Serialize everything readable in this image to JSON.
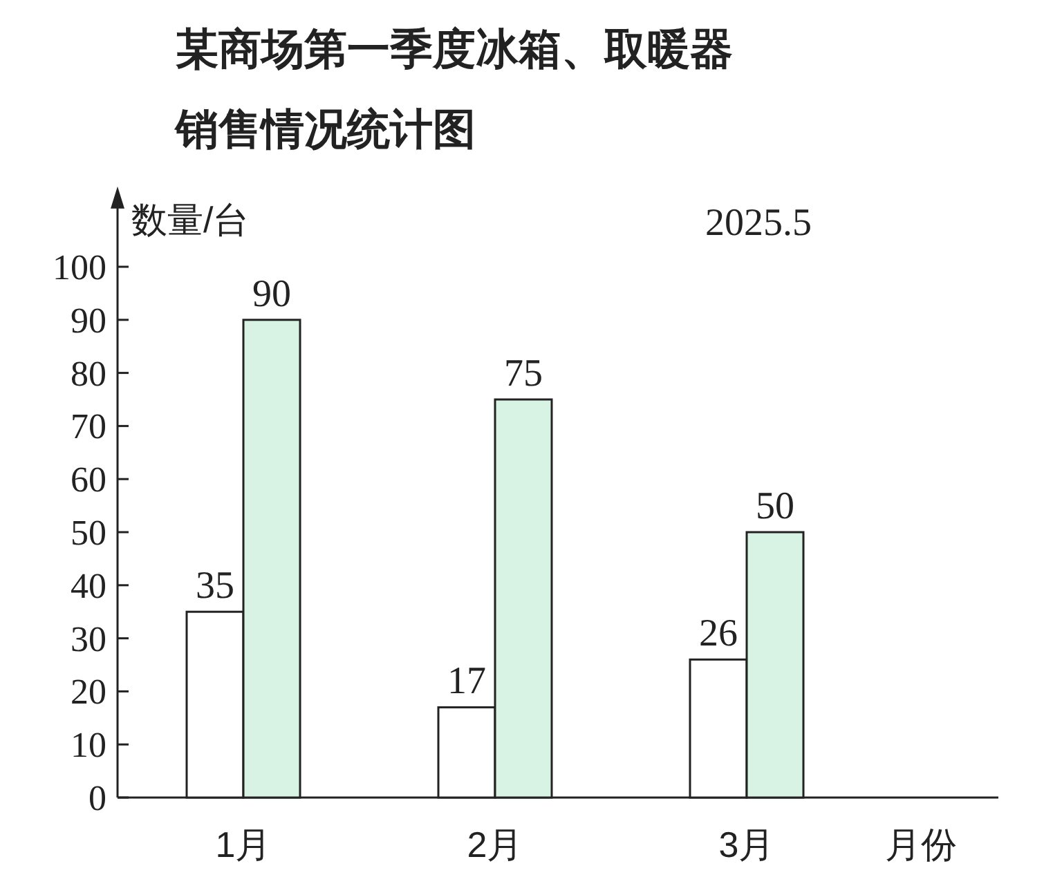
{
  "chart_data": {
    "type": "bar",
    "title": "某商场第一季度冰箱、取暖器销售情况统计图",
    "xlabel": "月份",
    "ylabel": "数量/台",
    "annotations": [
      "2025.5"
    ],
    "categories": [
      "1月",
      "2月",
      "3月"
    ],
    "series": [
      {
        "color": "#ffffff",
        "values": [
          35,
          17,
          26
        ]
      },
      {
        "color": "#d8f3e4",
        "values": [
          90,
          75,
          50
        ]
      }
    ],
    "ylim": [
      0,
      112
    ],
    "yticks": [
      0,
      10,
      20,
      30,
      40,
      50,
      60,
      70,
      80,
      90,
      100
    ],
    "data_labels": true
  }
}
